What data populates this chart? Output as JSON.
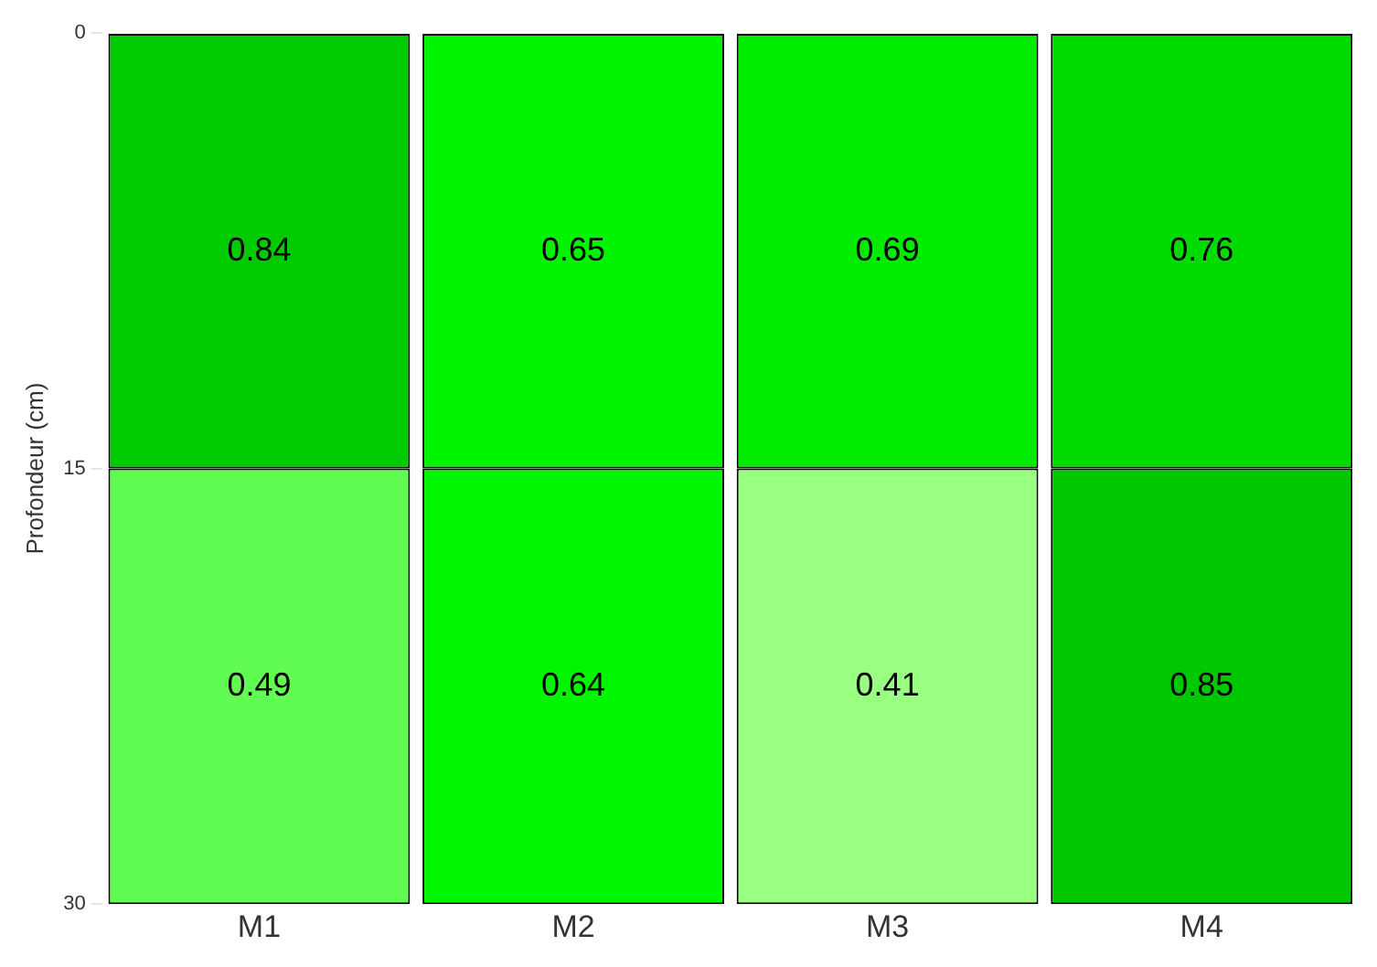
{
  "chart_data": {
    "type": "heatmap",
    "ylabel": "Profondeur (cm)",
    "categories": [
      "M1",
      "M2",
      "M3",
      "M4"
    ],
    "cells": [
      [
        0.84,
        0.65,
        0.69,
        0.76
      ],
      [
        0.49,
        0.64,
        0.41,
        0.85
      ]
    ],
    "data_labels": true,
    "ylim": [
      30,
      0
    ],
    "yticks": [
      0,
      15,
      30
    ],
    "grid": false,
    "legend": false
  }
}
